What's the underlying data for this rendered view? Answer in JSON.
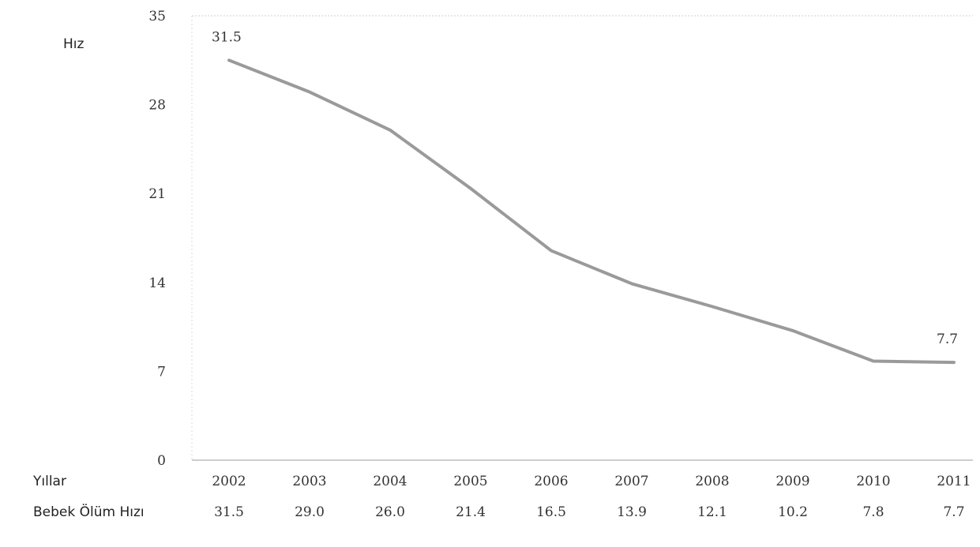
{
  "chart_data": {
    "type": "line",
    "title": "",
    "ylabel": "Hız",
    "ylim": [
      0,
      35
    ],
    "yticks": [
      0,
      7,
      14,
      21,
      28,
      35
    ],
    "grid": false,
    "x": [
      "2002",
      "2003",
      "2004",
      "2005",
      "2006",
      "2007",
      "2008",
      "2009",
      "2010",
      "2011"
    ],
    "series": [
      {
        "name": "Bebek Ölüm Hızı",
        "values": [
          31.5,
          29.0,
          26.0,
          21.4,
          16.5,
          13.9,
          12.1,
          10.2,
          7.8,
          7.7
        ]
      }
    ],
    "table": {
      "x_row_label": "Yıllar",
      "value_row_label": "Bebek Ölüm Hızı",
      "value_strings": [
        "31.5",
        "29.0",
        "26.0",
        "21.4",
        "16.5",
        "13.9",
        "12.1",
        "10.2",
        "7.8",
        "7.7"
      ]
    },
    "point_labels": {
      "first": "31.5",
      "last": "7.7"
    },
    "colors": {
      "line": "#9a9a9a",
      "axis": "#bdbdbd"
    }
  }
}
